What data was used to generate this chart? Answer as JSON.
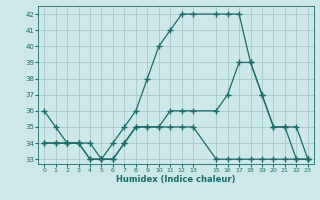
{
  "xlabel": "Humidex (Indice chaleur)",
  "bg_color": "#cce8e8",
  "line_color": "#1a6b6b",
  "grid_color": "#aacece",
  "xlim": [
    -0.5,
    23.5
  ],
  "ylim": [
    32.7,
    42.5
  ],
  "yticks": [
    33,
    34,
    35,
    36,
    37,
    38,
    39,
    40,
    41,
    42
  ],
  "xticks": [
    0,
    1,
    2,
    3,
    4,
    5,
    6,
    7,
    8,
    9,
    10,
    11,
    12,
    13,
    15,
    16,
    17,
    18,
    19,
    20,
    21,
    22,
    23
  ],
  "line1_x": [
    0,
    1,
    2,
    3,
    4,
    5,
    6,
    7,
    8,
    9,
    10,
    11,
    12,
    13,
    15,
    16,
    17,
    18,
    19,
    20,
    21,
    22,
    23
  ],
  "line1_y": [
    36,
    35,
    34,
    34,
    33,
    33,
    34,
    35,
    36,
    38,
    40,
    41,
    42,
    42,
    42,
    42,
    42,
    39,
    37,
    35,
    35,
    33,
    33
  ],
  "line2_x": [
    0,
    1,
    2,
    3,
    4,
    5,
    6,
    7,
    8,
    9,
    10,
    11,
    12,
    13,
    15,
    16,
    17,
    18,
    19,
    20,
    21,
    22,
    23
  ],
  "line2_y": [
    34,
    34,
    34,
    34,
    33,
    33,
    33,
    34,
    35,
    35,
    35,
    35,
    35,
    35,
    33,
    33,
    33,
    33,
    33,
    33,
    33,
    33,
    33
  ],
  "line3_x": [
    0,
    1,
    2,
    3,
    4,
    5,
    6,
    7,
    8,
    9,
    10,
    11,
    12,
    13,
    15,
    16,
    17,
    18,
    19,
    20,
    21,
    22,
    23
  ],
  "line3_y": [
    34,
    34,
    34,
    34,
    34,
    33,
    33,
    34,
    35,
    35,
    35,
    36,
    36,
    36,
    36,
    37,
    39,
    39,
    37,
    35,
    35,
    35,
    33
  ]
}
